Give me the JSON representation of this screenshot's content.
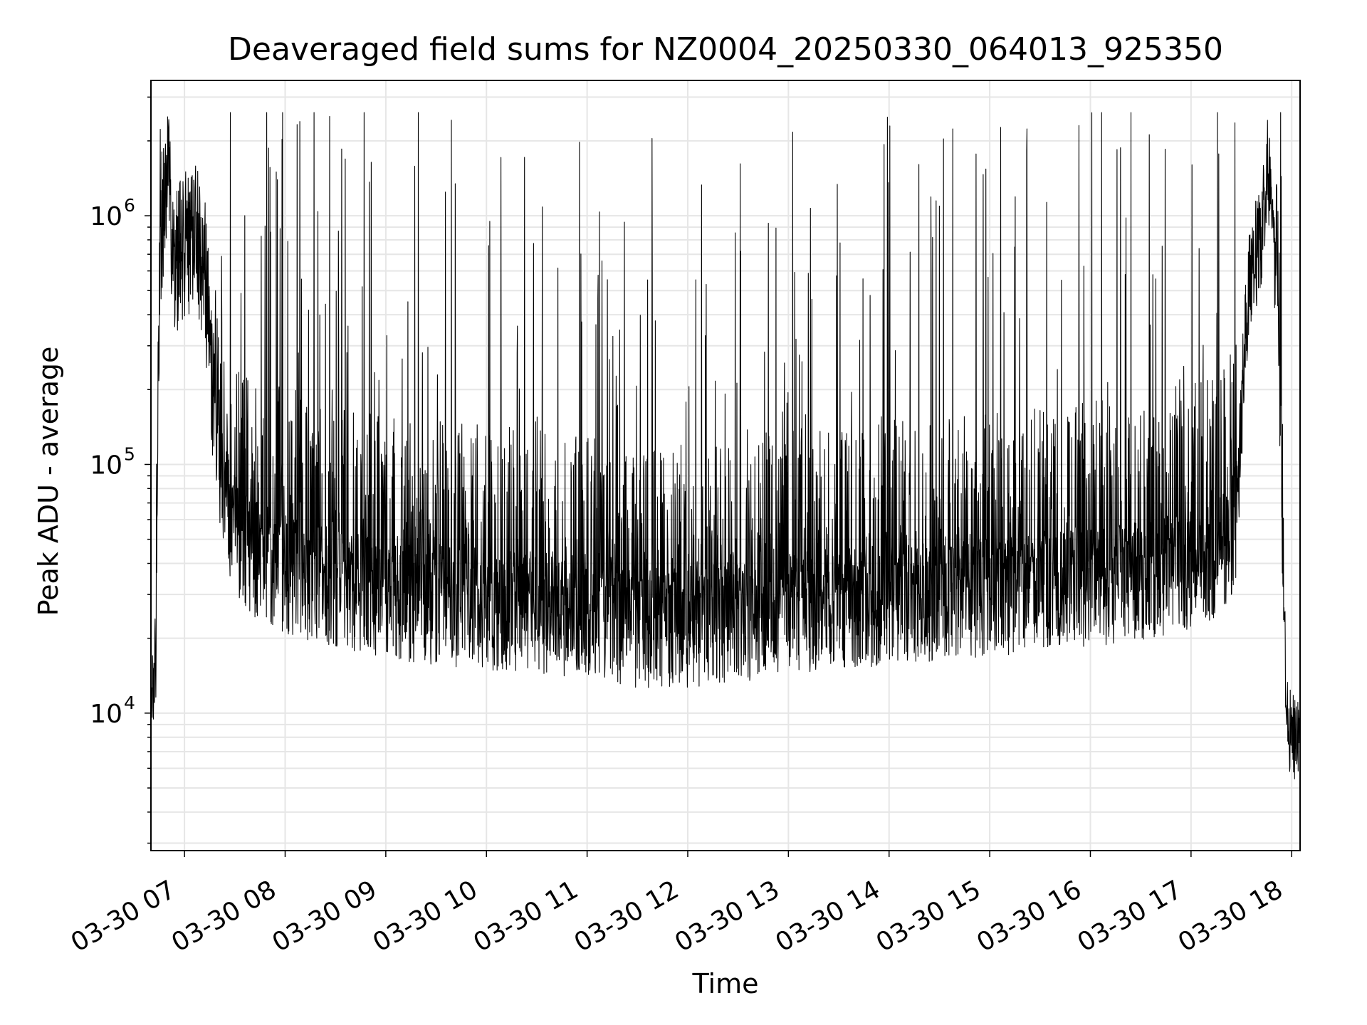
{
  "chart_data": {
    "type": "line",
    "title": "Deaveraged field sums for NZ0004_20250330_064013_925350",
    "xlabel": "Time",
    "ylabel": "Peak ADU - average",
    "yscale": "log",
    "ylim": [
      2800,
      3500000
    ],
    "y_ticks": [
      {
        "value": 10000,
        "base": "10",
        "exp": "4"
      },
      {
        "value": 100000,
        "base": "10",
        "exp": "5"
      },
      {
        "value": 1000000,
        "base": "10",
        "exp": "6"
      }
    ],
    "xlim": [
      "2025-03-30 06:40",
      "2025-03-30 18:05"
    ],
    "x_tick_labels": [
      "03-30 07",
      "03-30 08",
      "03-30 09",
      "03-30 10",
      "03-30 11",
      "03-30 12",
      "03-30 13",
      "03-30 14",
      "03-30 15",
      "03-30 16",
      "03-30 17",
      "03-30 18"
    ],
    "x_tick_hours": [
      7,
      8,
      9,
      10,
      11,
      12,
      13,
      14,
      15,
      16,
      17,
      18
    ],
    "grid": true,
    "grid_color": "#e6e6e6",
    "line_color": "#000000",
    "series": [
      {
        "hours": [
          6.67,
          6.72,
          6.74,
          6.76,
          6.8,
          6.84,
          6.88,
          6.9,
          6.95,
          7.0,
          7.1,
          7.2,
          7.25,
          7.3,
          7.35,
          7.4,
          7.45,
          7.5,
          7.6,
          7.7,
          7.8,
          7.9,
          8.0,
          8.25,
          8.5,
          8.75,
          9.0,
          9.5,
          10.0,
          10.5,
          11.0,
          11.5,
          12.0,
          12.5,
          13.0,
          13.5,
          14.0,
          14.5,
          15.0,
          15.5,
          16.0,
          16.5,
          17.0,
          17.2,
          17.35,
          17.45,
          17.5,
          17.55,
          17.6,
          17.65,
          17.7,
          17.72,
          17.74,
          17.76,
          17.78,
          17.8,
          17.85,
          17.9,
          17.95,
          18.0,
          18.05
        ],
        "baseline": [
          11500,
          18000,
          200000,
          800000,
          1350000,
          1500000,
          800000,
          700000,
          750000,
          800000,
          900000,
          650000,
          350000,
          170000,
          90000,
          70000,
          60000,
          55000,
          45000,
          42000,
          40000,
          38000,
          36000,
          34000,
          32000,
          30000,
          28000,
          27000,
          26000,
          25000,
          24000,
          22000,
          22000,
          23000,
          25000,
          26000,
          27000,
          28000,
          29000,
          30000,
          32000,
          34000,
          38000,
          40000,
          45000,
          60000,
          150000,
          400000,
          600000,
          700000,
          900000,
          1000000,
          1300000,
          1800000,
          1400000,
          1100000,
          500000,
          80000,
          9000,
          8500,
          7500
        ]
      }
    ]
  }
}
